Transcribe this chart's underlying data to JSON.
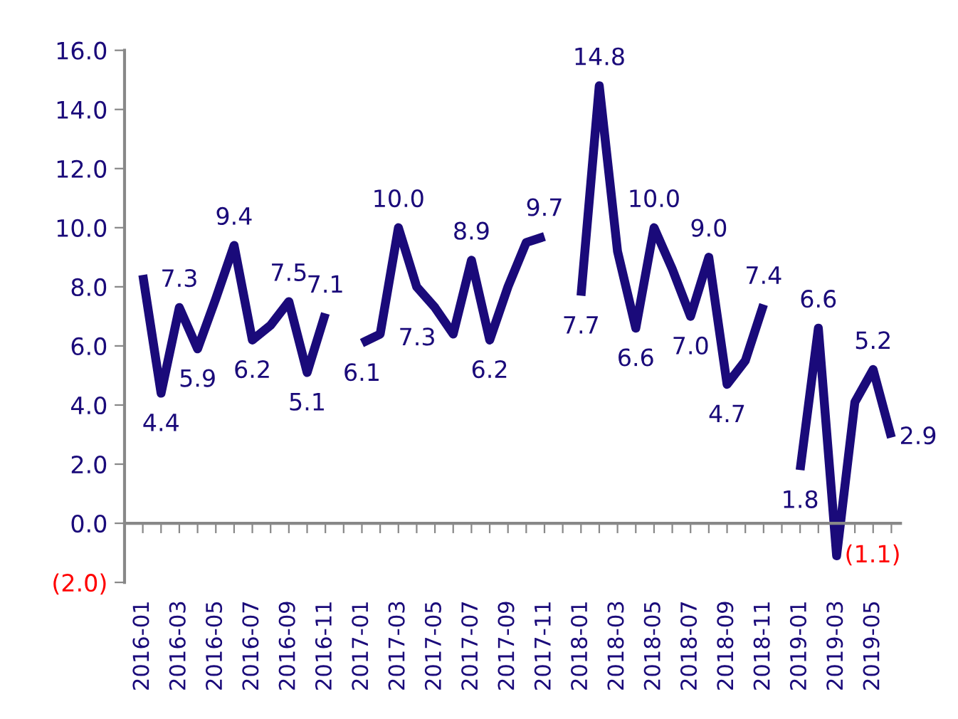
{
  "chart_data": {
    "type": "line",
    "categories": [
      "2016-01",
      null,
      "2016-03",
      null,
      "2016-05",
      null,
      "2016-07",
      null,
      "2016-09",
      null,
      "2016-11",
      null,
      "2017-01",
      null,
      "2017-03",
      null,
      "2017-05",
      null,
      "2017-07",
      null,
      "2017-09",
      null,
      "2017-11",
      null,
      "2018-01",
      null,
      "2018-03",
      null,
      "2018-05",
      null,
      "2018-07",
      null,
      "2018-09",
      null,
      "2018-11",
      null,
      "2019-01",
      null,
      "2019-03",
      null,
      "2019-05",
      null
    ],
    "series": [
      {
        "color": "#1a0a7a",
        "values": [
          8.4,
          4.4,
          7.3,
          5.9,
          7.6,
          9.4,
          6.2,
          6.7,
          7.5,
          5.1,
          7.1,
          null,
          6.1,
          6.4,
          10.0,
          8.0,
          7.3,
          6.4,
          8.9,
          6.2,
          8.0,
          9.5,
          9.7,
          null,
          7.7,
          14.8,
          9.2,
          6.6,
          10.0,
          8.6,
          7.0,
          9.0,
          4.7,
          5.5,
          7.4,
          null,
          1.8,
          6.6,
          -1.1,
          4.1,
          5.2,
          2.9
        ],
        "value_labels": [
          null,
          "4.4",
          "7.3",
          "5.9",
          null,
          "9.4",
          "6.2",
          null,
          "7.5",
          "5.1",
          "7.1",
          null,
          "6.1",
          null,
          "10.0",
          null,
          "7.3",
          null,
          "8.9",
          "6.2",
          null,
          null,
          "9.7",
          null,
          "7.7",
          "14.8",
          null,
          "6.6",
          "10.0",
          null,
          "7.0",
          "9.0",
          "4.7",
          null,
          "7.4",
          null,
          "1.8",
          "6.6",
          "(1.1)",
          null,
          "5.2",
          "2.9"
        ]
      }
    ],
    "ylim": [
      -2,
      16
    ],
    "yticks": [
      {
        "value": -2,
        "label": "(2.0)"
      },
      {
        "value": 0,
        "label": "0.0"
      },
      {
        "value": 2,
        "label": "2.0"
      },
      {
        "value": 4,
        "label": "4.0"
      },
      {
        "value": 6,
        "label": "6.0"
      },
      {
        "value": 8,
        "label": "8.0"
      },
      {
        "value": 10,
        "label": "10.0"
      },
      {
        "value": 12,
        "label": "12.0"
      },
      {
        "value": 14,
        "label": "14.0"
      },
      {
        "value": 16,
        "label": "16.0"
      }
    ],
    "legend": false,
    "marker": "none",
    "line_style": "solid"
  }
}
